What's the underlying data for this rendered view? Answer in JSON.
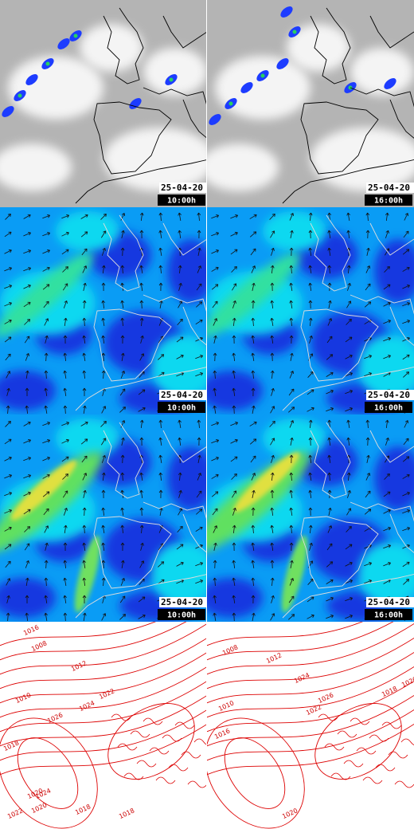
{
  "rows": [
    {
      "cells": [
        {
          "date": "25-04-20",
          "time": "10:00h"
        },
        {
          "date": "25-04-20",
          "time": "16:00h"
        }
      ]
    },
    {
      "cells": [
        {
          "date": "25-04-20",
          "time": "10:00h"
        },
        {
          "date": "25-04-20",
          "time": "16:00h"
        }
      ]
    },
    {
      "cells": [
        {
          "date": "25-04-20",
          "time": "10:00h"
        },
        {
          "date": "25-04-20",
          "time": "16:00h"
        }
      ]
    }
  ],
  "pressure": {
    "cells": [
      {
        "labels": [
          "1008",
          "1012",
          "1016",
          "1018",
          "1020",
          "1022",
          "1010",
          "1024",
          "1026",
          "1018",
          "1024",
          "1022",
          "1020",
          "1018"
        ]
      },
      {
        "labels": [
          "1008",
          "1012",
          "1010",
          "1022",
          "1024",
          "1026",
          "1020",
          "1018",
          "1016",
          "1020"
        ]
      }
    ]
  }
}
